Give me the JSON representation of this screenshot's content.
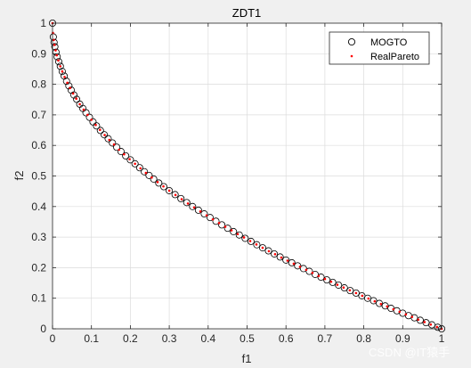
{
  "chart_data": {
    "type": "scatter",
    "title": "ZDT1",
    "xlabel": "f1",
    "ylabel": "f2",
    "xlim": [
      0,
      1
    ],
    "ylim": [
      0,
      1
    ],
    "xticks": [
      "0",
      "0.1",
      "0.2",
      "0.3",
      "0.4",
      "0.5",
      "0.6",
      "0.7",
      "0.8",
      "0.9",
      "1"
    ],
    "yticks": [
      "0",
      "0.1",
      "0.2",
      "0.3",
      "0.4",
      "0.5",
      "0.6",
      "0.7",
      "0.8",
      "0.9",
      "1"
    ],
    "grid": true,
    "legend_position": "top-right",
    "series": [
      {
        "name": "MOGTO",
        "marker": "open-circle",
        "color": "#000000",
        "x": [
          0,
          0.002,
          0.004,
          0.006,
          0.009,
          0.012,
          0.016,
          0.02,
          0.025,
          0.03,
          0.036,
          0.042,
          0.048,
          0.055,
          0.062,
          0.07,
          0.078,
          0.086,
          0.095,
          0.104,
          0.113,
          0.123,
          0.133,
          0.143,
          0.154,
          0.165,
          0.176,
          0.188,
          0.2,
          0.212,
          0.224,
          0.236,
          0.248,
          0.26,
          0.273,
          0.286,
          0.3,
          0.315,
          0.33,
          0.345,
          0.36,
          0.375,
          0.39,
          0.405,
          0.42,
          0.435,
          0.45,
          0.465,
          0.48,
          0.495,
          0.51,
          0.525,
          0.54,
          0.555,
          0.57,
          0.585,
          0.6,
          0.615,
          0.63,
          0.645,
          0.66,
          0.675,
          0.69,
          0.705,
          0.72,
          0.735,
          0.75,
          0.765,
          0.78,
          0.795,
          0.81,
          0.825,
          0.84,
          0.855,
          0.87,
          0.885,
          0.9,
          0.915,
          0.93,
          0.945,
          0.96,
          0.975,
          0.99,
          1
        ],
        "y": [
          1,
          0.955,
          0.937,
          0.923,
          0.905,
          0.89,
          0.874,
          0.859,
          0.842,
          0.827,
          0.81,
          0.795,
          0.781,
          0.765,
          0.751,
          0.735,
          0.721,
          0.707,
          0.692,
          0.677,
          0.664,
          0.649,
          0.635,
          0.622,
          0.608,
          0.594,
          0.58,
          0.566,
          0.553,
          0.54,
          0.527,
          0.514,
          0.502,
          0.49,
          0.477,
          0.465,
          0.452,
          0.439,
          0.426,
          0.413,
          0.4,
          0.388,
          0.376,
          0.364,
          0.352,
          0.34,
          0.329,
          0.318,
          0.307,
          0.296,
          0.286,
          0.275,
          0.265,
          0.255,
          0.245,
          0.235,
          0.225,
          0.216,
          0.206,
          0.197,
          0.188,
          0.178,
          0.169,
          0.16,
          0.152,
          0.143,
          0.134,
          0.125,
          0.117,
          0.108,
          0.1,
          0.092,
          0.083,
          0.075,
          0.067,
          0.059,
          0.051,
          0.043,
          0.036,
          0.028,
          0.02,
          0.013,
          0.005,
          0
        ]
      },
      {
        "name": "RealPareto",
        "marker": "dot",
        "color": "#ff0000",
        "x": [
          0,
          0.001,
          0.003,
          0.005,
          0.008,
          0.011,
          0.015,
          0.02,
          0.025,
          0.031,
          0.038,
          0.045,
          0.053,
          0.061,
          0.07,
          0.08,
          0.09,
          0.1,
          0.111,
          0.122,
          0.134,
          0.146,
          0.158,
          0.171,
          0.184,
          0.198,
          0.212,
          0.226,
          0.24,
          0.255,
          0.27,
          0.285,
          0.3,
          0.316,
          0.332,
          0.348,
          0.364,
          0.38,
          0.396,
          0.412,
          0.428,
          0.444,
          0.46,
          0.476,
          0.492,
          0.508,
          0.524,
          0.54,
          0.556,
          0.572,
          0.588,
          0.604,
          0.62,
          0.636,
          0.652,
          0.668,
          0.684,
          0.7,
          0.716,
          0.732,
          0.748,
          0.764,
          0.78,
          0.796,
          0.812,
          0.828,
          0.844,
          0.86,
          0.876,
          0.892,
          0.908,
          0.924,
          0.94,
          0.956,
          0.972,
          0.988,
          1
        ],
        "y": [
          1,
          0.968,
          0.945,
          0.929,
          0.911,
          0.895,
          0.878,
          0.859,
          0.842,
          0.824,
          0.805,
          0.788,
          0.77,
          0.753,
          0.735,
          0.717,
          0.7,
          0.684,
          0.667,
          0.651,
          0.634,
          0.618,
          0.603,
          0.586,
          0.571,
          0.555,
          0.54,
          0.525,
          0.51,
          0.495,
          0.48,
          0.466,
          0.452,
          0.438,
          0.424,
          0.41,
          0.397,
          0.384,
          0.371,
          0.358,
          0.346,
          0.334,
          0.322,
          0.31,
          0.299,
          0.287,
          0.276,
          0.265,
          0.254,
          0.244,
          0.233,
          0.223,
          0.213,
          0.203,
          0.193,
          0.183,
          0.173,
          0.163,
          0.154,
          0.144,
          0.135,
          0.126,
          0.117,
          0.108,
          0.099,
          0.09,
          0.081,
          0.073,
          0.064,
          0.056,
          0.047,
          0.039,
          0.03,
          0.022,
          0.014,
          0.006,
          0
        ]
      }
    ]
  },
  "watermark": "CSDN @IT猿手",
  "colors": {
    "figure_bg": "#f0f0f0",
    "axes_bg": "#ffffff",
    "grid": "#dcdcdc",
    "axis": "#262626"
  }
}
